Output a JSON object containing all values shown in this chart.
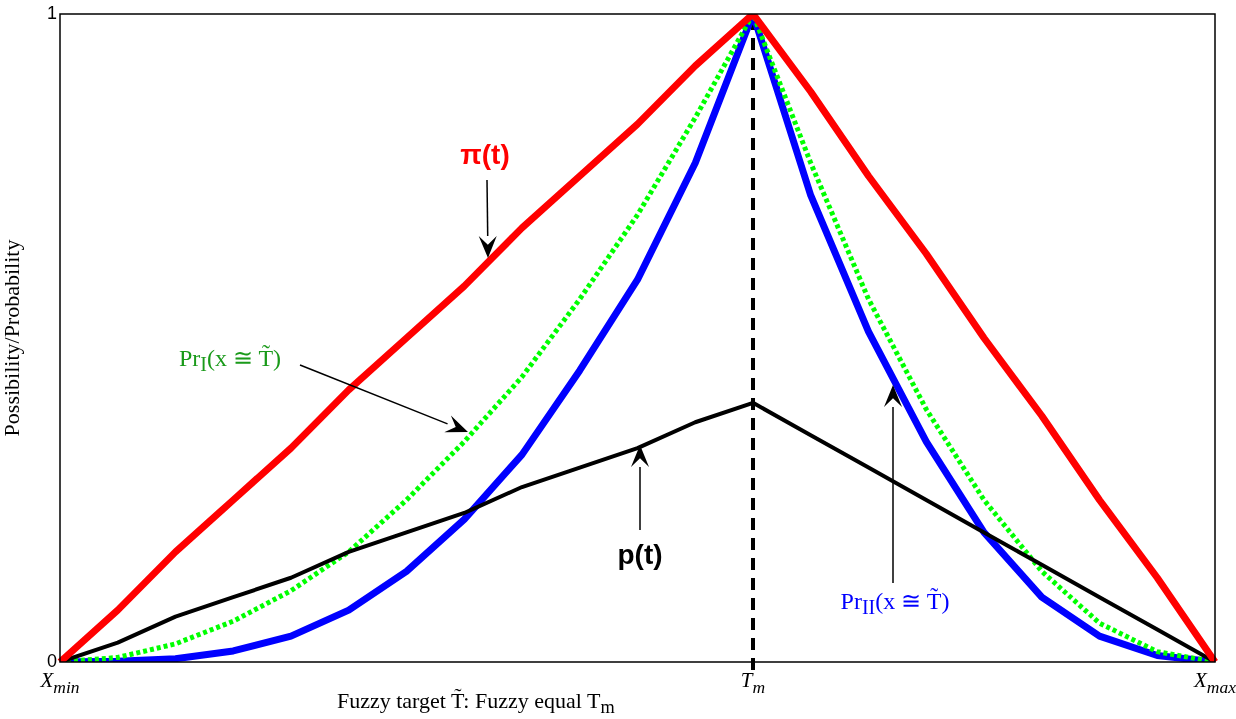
{
  "chart_data": {
    "type": "line",
    "xlabel": "Fuzzy target T̃: Fuzzy equal T$_{m}$",
    "ylabel": "Possibility/Probability",
    "categories": [
      "X$_{min}$",
      null,
      null,
      null,
      null,
      null,
      null,
      null,
      null,
      null,
      null,
      null,
      "T$_{m}$",
      null,
      null,
      null,
      null,
      null,
      null,
      null,
      "X$_{max}$"
    ],
    "ylim": [
      0,
      1
    ],
    "yticks": [
      0,
      1
    ],
    "grid": false,
    "legend": false,
    "series": [
      {
        "color": "#ff0000",
        "line_style": "solid",
        "values": [
          0,
          0.08,
          0.17,
          0.25,
          0.33,
          0.42,
          0.5,
          0.58,
          0.67,
          0.75,
          0.83,
          0.92,
          1,
          0.88,
          0.75,
          0.63,
          0.5,
          0.38,
          0.25,
          0.13,
          0
        ]
      },
      {
        "color": "#000000",
        "line_style": "solid",
        "values": [
          0,
          0.03,
          0.07,
          0.1,
          0.13,
          0.17,
          0.2,
          0.23,
          0.27,
          0.3,
          0.33,
          0.37,
          0.4,
          0.35,
          0.3,
          0.25,
          0.2,
          0.15,
          0.1,
          0.05,
          0
        ]
      },
      {
        "color": "#00ff00",
        "line_style": "dotted",
        "values": [
          0,
          0.007,
          0.028,
          0.063,
          0.11,
          0.17,
          0.25,
          0.34,
          0.44,
          0.56,
          0.69,
          0.84,
          1,
          0.77,
          0.56,
          0.39,
          0.25,
          0.14,
          0.06,
          0.016,
          0
        ]
      },
      {
        "color": "#0000ff",
        "line_style": "solid",
        "values": [
          0,
          0.001,
          0.005,
          0.017,
          0.04,
          0.08,
          0.14,
          0.22,
          0.32,
          0.45,
          0.59,
          0.77,
          1,
          0.72,
          0.51,
          0.34,
          0.2,
          0.1,
          0.04,
          0.01,
          0
        ]
      }
    ],
    "ref_lines": [
      {
        "axis": "x",
        "value": "T$_{m}$",
        "color": "#000000",
        "line_style": "dashed"
      }
    ],
    "annotations": [
      "π(t)",
      "p(t)",
      "Pr$_{I}$(x ≅ T̃)",
      "Pr$_{II}$(x ≅ T̃)"
    ]
  }
}
